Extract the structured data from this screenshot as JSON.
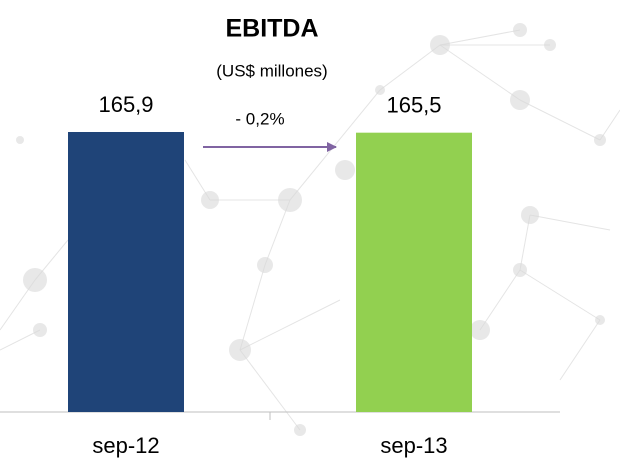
{
  "chart_data": {
    "type": "bar",
    "title": "EBITDA",
    "subtitle": "(US$ millones)",
    "categories": [
      "sep-12",
      "sep-13"
    ],
    "values": [
      165.9,
      165.5
    ],
    "value_labels": [
      "165,9",
      "165,5"
    ],
    "colors": [
      "#1f4478",
      "#92d050"
    ],
    "annotation": "- 0,2%",
    "arrow_color": "#8064a2",
    "grid": false
  }
}
